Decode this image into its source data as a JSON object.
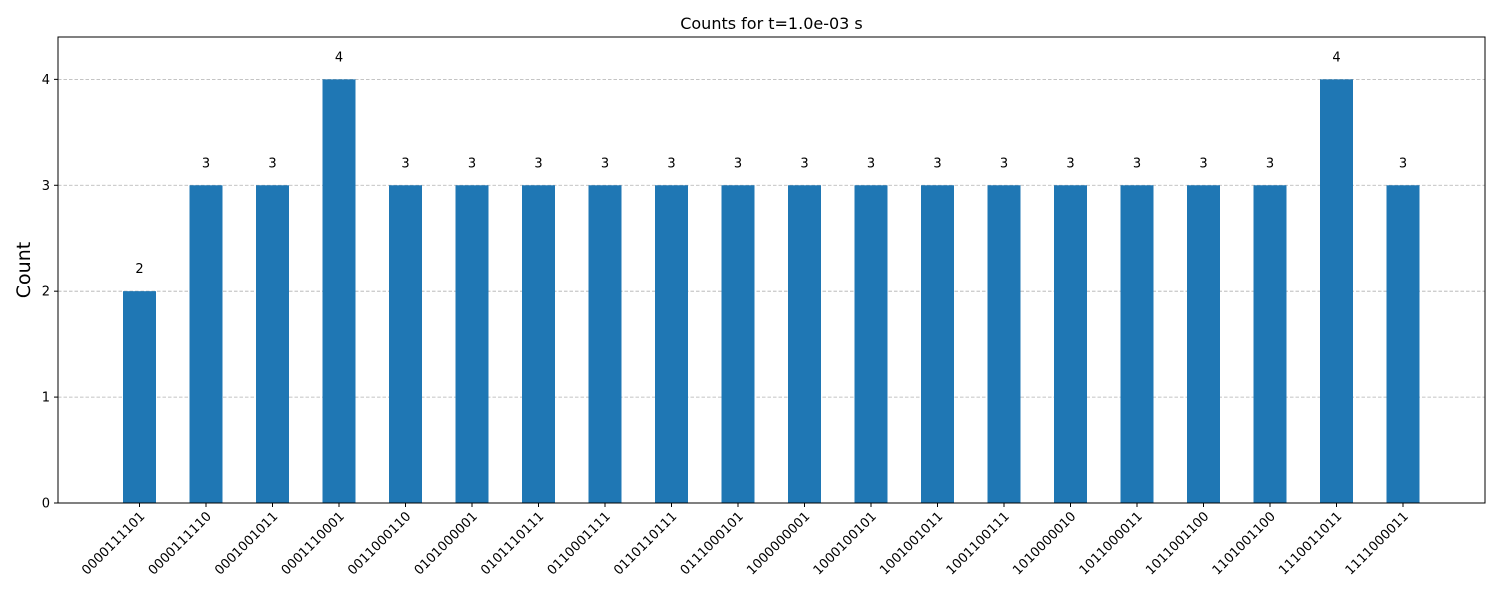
{
  "chart_data": {
    "type": "bar",
    "title": "Counts for t=1.0e-03 s",
    "xlabel": "",
    "ylabel": "Count",
    "ylim": [
      0,
      4.4
    ],
    "yticks": [
      0,
      1,
      2,
      3,
      4
    ],
    "grid": "y-dashed",
    "color": "#1f77b4",
    "categories": [
      "0000111101",
      "0000111110",
      "0001001011",
      "0001110001",
      "0011000110",
      "0101000001",
      "0101110111",
      "0110001111",
      "0110110111",
      "0111000101",
      "1000000001",
      "1000100101",
      "1001001011",
      "1001100111",
      "1010000010",
      "1011000011",
      "1011001100",
      "1101001100",
      "1110011011",
      "1111000011"
    ],
    "values": [
      2,
      3,
      3,
      4,
      3,
      3,
      3,
      3,
      3,
      3,
      3,
      3,
      3,
      3,
      3,
      3,
      3,
      3,
      4,
      3
    ]
  }
}
